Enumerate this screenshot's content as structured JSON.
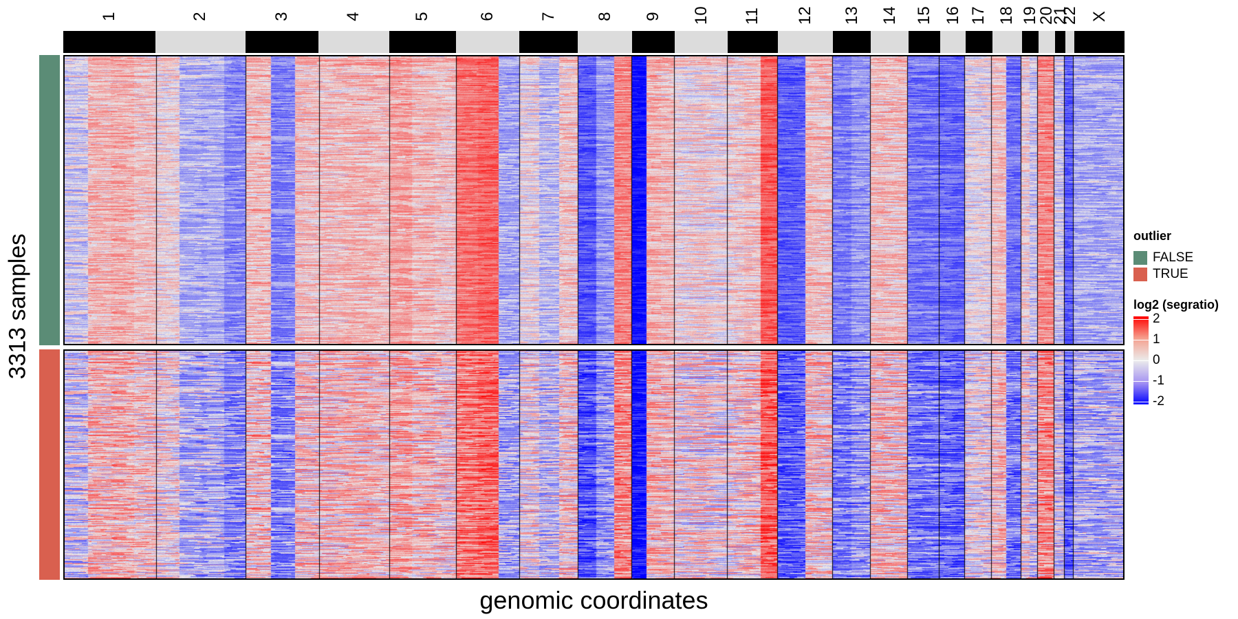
{
  "chart_data": {
    "type": "heatmap",
    "title": "",
    "xlabel": "genomic coordinates",
    "ylabel": "3313 samples",
    "chromosomes": [
      {
        "name": "1",
        "length": 249,
        "fill": "black"
      },
      {
        "name": "2",
        "length": 243,
        "fill": "gray"
      },
      {
        "name": "3",
        "length": 198,
        "fill": "black"
      },
      {
        "name": "4",
        "length": 191,
        "fill": "gray"
      },
      {
        "name": "5",
        "length": 181,
        "fill": "black"
      },
      {
        "name": "6",
        "length": 171,
        "fill": "gray"
      },
      {
        "name": "7",
        "length": 159,
        "fill": "black"
      },
      {
        "name": "8",
        "length": 146,
        "fill": "gray"
      },
      {
        "name": "9",
        "length": 116,
        "fill": "black"
      },
      {
        "name": "10",
        "length": 143,
        "fill": "gray"
      },
      {
        "name": "11",
        "length": 135,
        "fill": "black"
      },
      {
        "name": "12",
        "length": 150,
        "fill": "gray"
      },
      {
        "name": "13",
        "length": 102,
        "fill": "black"
      },
      {
        "name": "14",
        "length": 102,
        "fill": "gray"
      },
      {
        "name": "15",
        "length": 86,
        "fill": "black"
      },
      {
        "name": "16",
        "length": 68,
        "fill": "gray"
      },
      {
        "name": "17",
        "length": 72,
        "fill": "black"
      },
      {
        "name": "18",
        "length": 81,
        "fill": "gray"
      },
      {
        "name": "19",
        "length": 45,
        "fill": "black"
      },
      {
        "name": "20",
        "length": 45,
        "fill": "gray"
      },
      {
        "name": "21",
        "length": 27,
        "fill": "black"
      },
      {
        "name": "22",
        "length": 25,
        "fill": "gray"
      },
      {
        "name": "X",
        "length": 135,
        "fill": "black"
      }
    ],
    "chr_colors": {
      "black": "#000000",
      "gray": "#dcdcdc"
    },
    "groups": [
      {
        "label": "FALSE",
        "color": "#5b8c76",
        "rows_fraction": 0.56
      },
      {
        "label": "TRUE",
        "color": "#d9604f",
        "rows_fraction": 0.44
      }
    ],
    "color_scale": {
      "name": "log2 (segratio)",
      "min": -2,
      "max": 2,
      "ticks": [
        "2",
        "1",
        "0",
        "-1",
        "-2"
      ],
      "colors": {
        "low": "#0000ff",
        "mid": "#ebebeb",
        "high": "#ff0000"
      }
    },
    "mean_log2_by_chromosome": {
      "1": [
        -0.15,
        0.35,
        0.45,
        0.3
      ],
      "2": [
        0.15,
        -0.35,
        -0.4,
        -0.7
      ],
      "3": [
        0.35,
        -0.75,
        0.3
      ],
      "4": [
        0.3,
        0.35,
        0.35
      ],
      "5": [
        0.55,
        0.35,
        0.3
      ],
      "6": [
        1.0,
        1.1,
        -0.45
      ],
      "7": [
        0.05,
        -0.3,
        0.25
      ],
      "8": [
        -1.15,
        -0.6,
        0.8
      ],
      "9": [
        -1.9,
        0.4,
        0.3
      ],
      "10": [
        0.1,
        0.15,
        0.1
      ],
      "11": [
        0.15,
        0.25,
        1.15
      ],
      "12": [
        -1.1,
        0.3
      ],
      "13": [
        -0.8,
        -0.6
      ],
      "14": [
        0.3
      ],
      "15": [
        -0.9
      ],
      "16": [
        -1.0
      ],
      "17": [
        0.0
      ],
      "18": [
        0.25,
        -0.9
      ],
      "19": [
        0.15,
        -0.2
      ],
      "20": [
        0.75
      ],
      "21": [
        -0.2
      ],
      "22": [
        -1.1
      ],
      "X": [
        -0.45
      ]
    }
  },
  "legend": {
    "outlier_title": "outlier",
    "outlier_items": [
      {
        "label": "FALSE",
        "color": "#5b8c76"
      },
      {
        "label": "TRUE",
        "color": "#d9604f"
      }
    ],
    "lfc_title": "log2 (segratio)",
    "lfc_ticks": [
      "2",
      "1",
      "0",
      "-1",
      "-2"
    ]
  }
}
